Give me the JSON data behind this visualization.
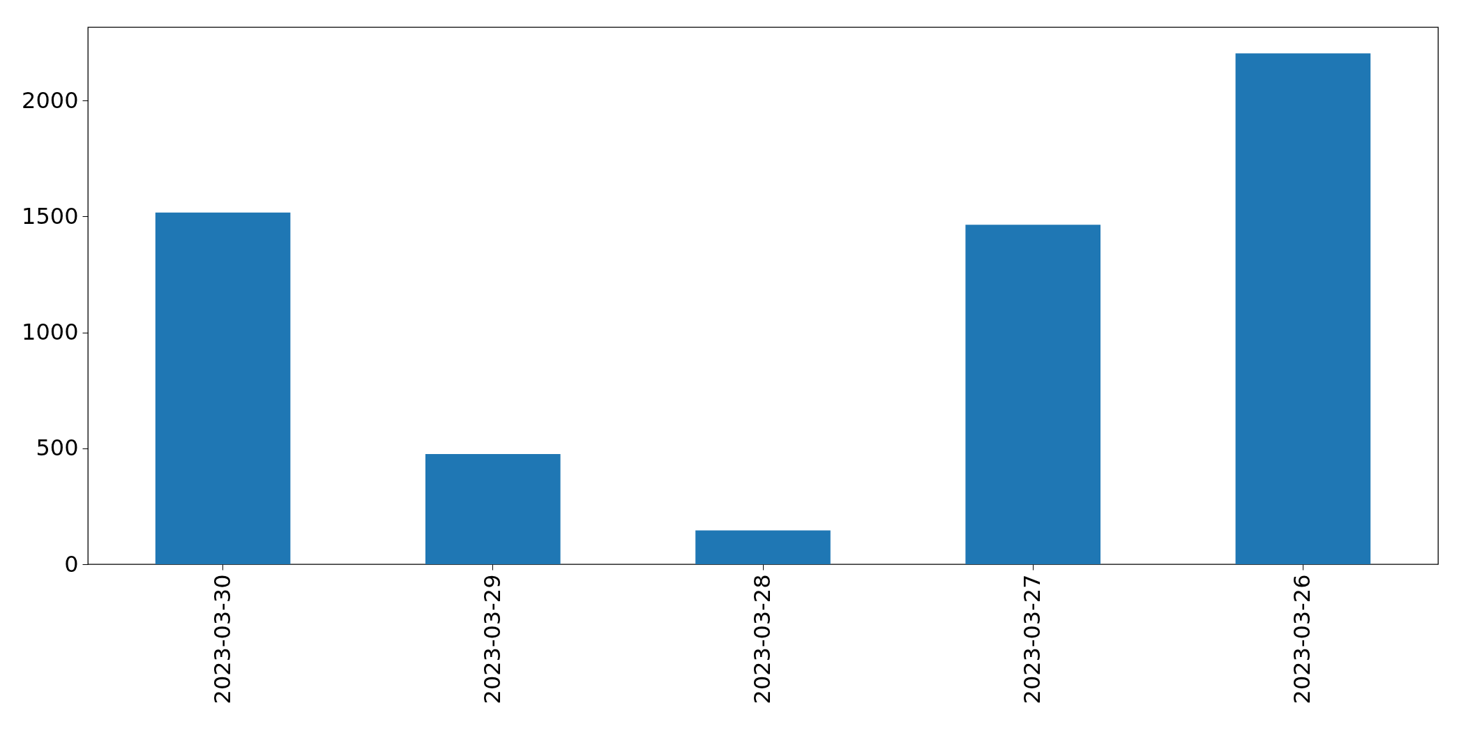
{
  "chart_data": {
    "type": "bar",
    "categories": [
      "2023-03-30",
      "2023-03-29",
      "2023-03-28",
      "2023-03-27",
      "2023-03-26"
    ],
    "values": [
      1517,
      475,
      146,
      1464,
      2203
    ],
    "color": "#1f77b4",
    "ylim": [
      0,
      2316
    ],
    "yticks": [
      0,
      500,
      1000,
      1500,
      2000
    ],
    "grid": false
  }
}
